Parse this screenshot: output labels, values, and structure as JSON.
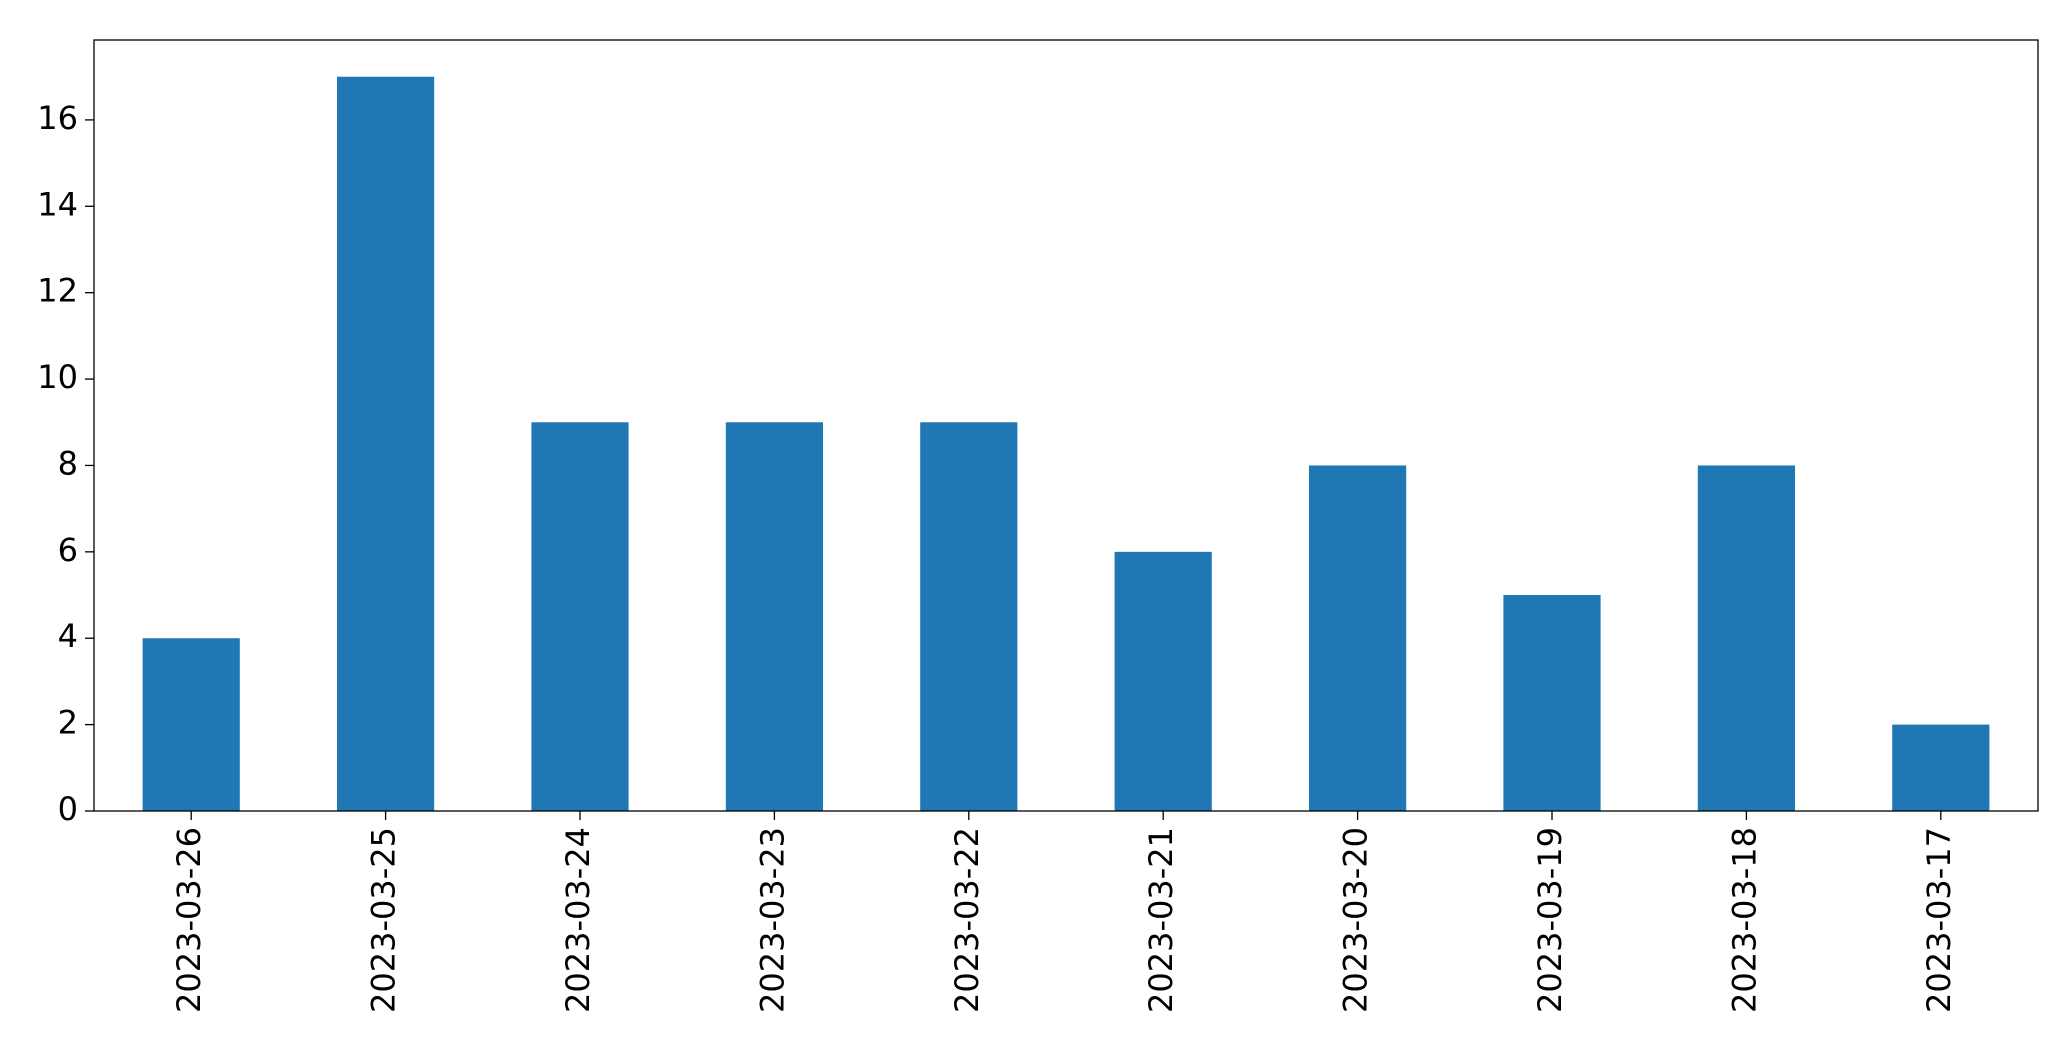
{
  "chart_data": {
    "type": "bar",
    "categories": [
      "2023-03-26",
      "2023-03-25",
      "2023-03-24",
      "2023-03-23",
      "2023-03-22",
      "2023-03-21",
      "2023-03-20",
      "2023-03-19",
      "2023-03-18",
      "2023-03-17"
    ],
    "values": [
      4,
      17,
      9,
      9,
      9,
      6,
      8,
      5,
      8,
      2
    ],
    "color": "#1f77b4",
    "ylim": [
      0,
      17.85
    ],
    "yticks": [
      0,
      2,
      4,
      6,
      8,
      10,
      12,
      14,
      16
    ],
    "grid": false
  }
}
